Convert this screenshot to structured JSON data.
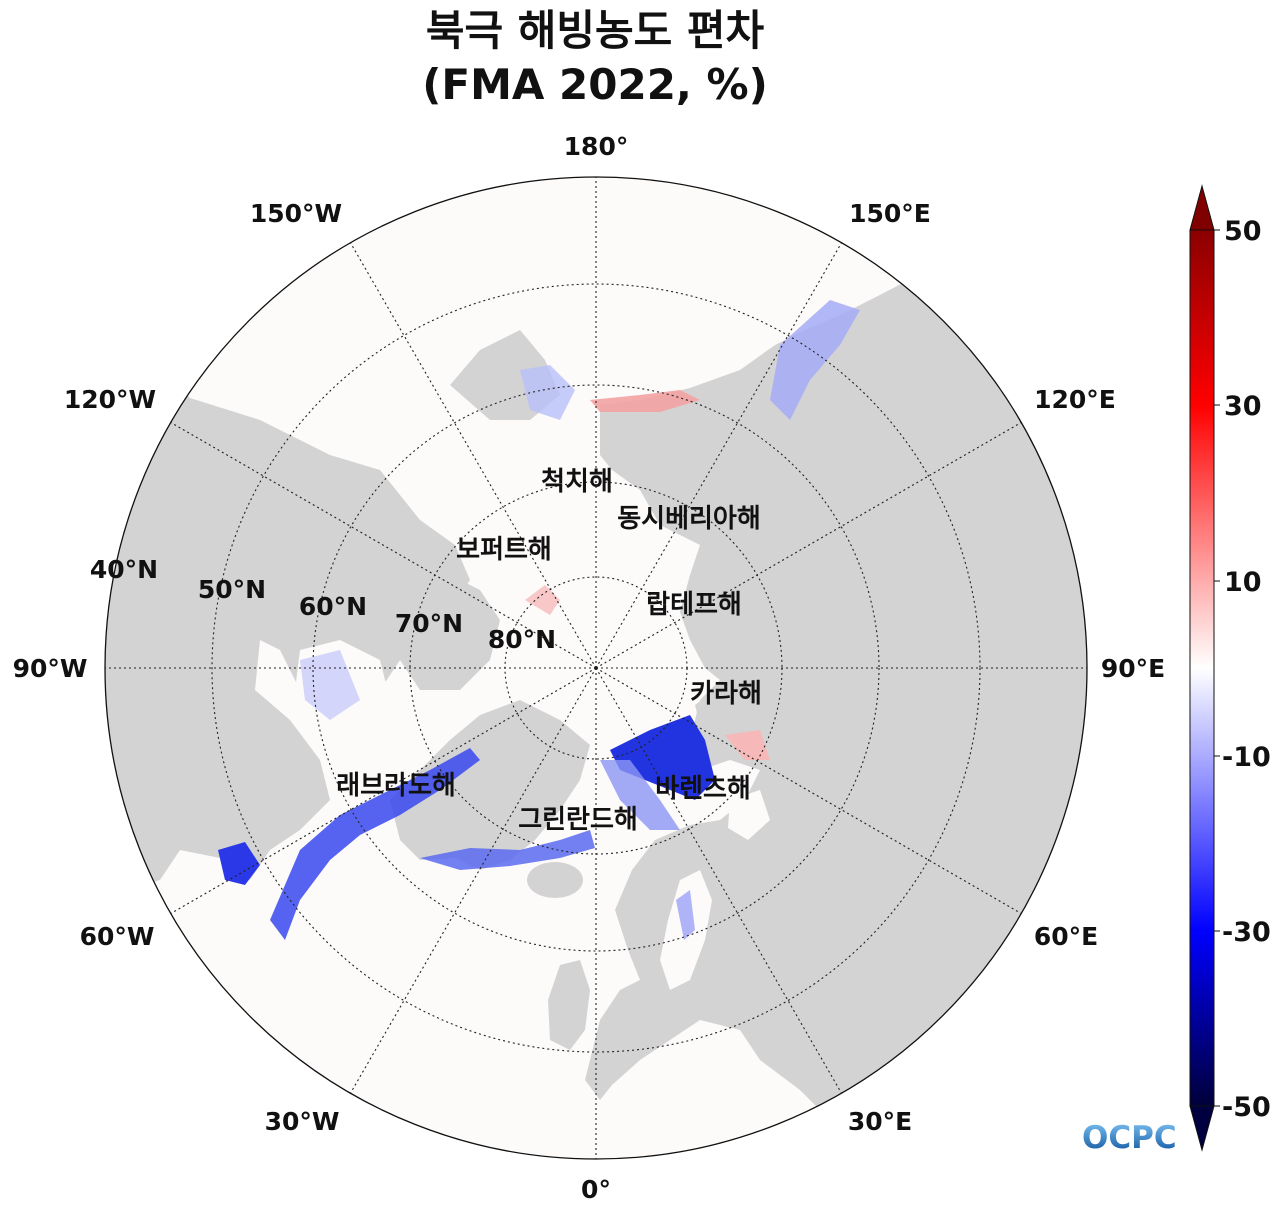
{
  "title": {
    "line1": "북극 해빙농도 편차",
    "line2": "(FMA 2022, %)"
  },
  "longitude_labels": [
    "180°",
    "150°E",
    "120°E",
    "90°E",
    "60°E",
    "30°E",
    "0°",
    "30°W",
    "60°W",
    "90°W",
    "120°W",
    "150°W"
  ],
  "latitude_labels": [
    "40°N",
    "50°N",
    "60°N",
    "70°N",
    "80°N"
  ],
  "sea_labels": [
    "척치해",
    "동시베리아해",
    "보퍼트해",
    "랍테프해",
    "카라해",
    "바렌츠해",
    "래브라도해",
    "그린란드해"
  ],
  "colorbar": {
    "ticks": [
      "50",
      "30",
      "10",
      "-10",
      "-30",
      "-50"
    ],
    "range": [
      -50,
      50
    ],
    "colors": {
      "max": "#800000",
      "pos": "#ff0000",
      "zero": "#ffffff",
      "neg": "#0000ff",
      "min": "#000040"
    }
  },
  "colors": {
    "land": "#d3d3d3",
    "ocean": "#fdfafa",
    "negative_anomaly": "#3040f0",
    "positive_anomaly": "#f4a8a8"
  },
  "logo": {
    "text": "OCPC"
  }
}
